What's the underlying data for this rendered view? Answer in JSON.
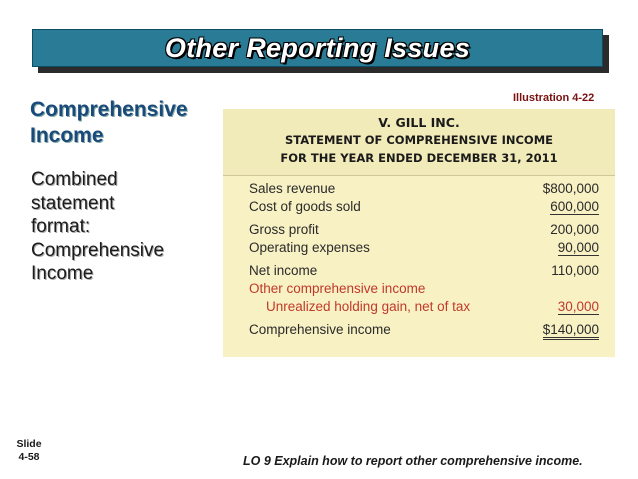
{
  "title": "Other Reporting Issues",
  "illustration": "Illustration 4-22",
  "heading": [
    "Comprehensive",
    "Income"
  ],
  "body_lines": [
    "Combined",
    "statement",
    "format:",
    "Comprehensive",
    "Income"
  ],
  "statement": {
    "company": "V. GILL INC.",
    "name": "STATEMENT OF COMPREHENSIVE INCOME",
    "period": "FOR THE YEAR ENDED DECEMBER 31, 2011",
    "rows": [
      {
        "label": "Sales revenue",
        "amount": "$800,000"
      },
      {
        "label": "Cost of goods sold",
        "amount": "600,000"
      },
      {
        "label": "Gross profit",
        "amount": "200,000"
      },
      {
        "label": "Operating expenses",
        "amount": "90,000"
      },
      {
        "label": "Net income",
        "amount": "110,000"
      },
      {
        "label": "Other comprehensive income",
        "amount": ""
      },
      {
        "label": "Unrealized holding gain, net of tax",
        "amount": "30,000"
      },
      {
        "label": "Comprehensive income",
        "amount": "$140,000"
      }
    ]
  },
  "slide_label": "Slide",
  "slide_number": "4-58",
  "learning_objective": "LO 9  Explain how to report other comprehensive income."
}
